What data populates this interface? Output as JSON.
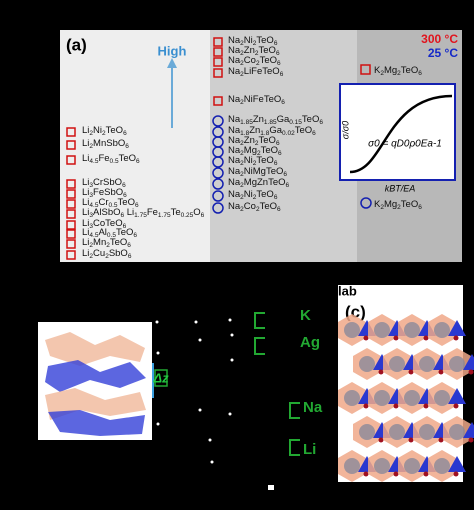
{
  "panel_a": {
    "label": "(a)",
    "arrow_label": "High",
    "temp_high": "300 °C",
    "temp_low": "25 °C",
    "li_compounds": [
      "Li2Ni2TeO6",
      "Li2MnSbO6",
      "Li4.5Fe0.5TeO6",
      "Li3CrSbO6",
      "Li3FeSbO6",
      "Li4.5Cr0.5TeO6",
      "Li3AlSbO6 Li1.75Fe1.75Te0.25O6",
      "Li3CoTeO6",
      "Li4.5Al0.5TeO6",
      "Li2Mn2TeO6",
      "Li2Cu2SbO6"
    ],
    "na_compounds": [
      "Na2Ni2TeO6",
      "Na2Zn2TeO6",
      "Na2Co2TeO6",
      "Na2LiFeTeO6",
      "Na2NiFeTeO6",
      "Na1.85Zn1.85Ga0.15TeO6",
      "Na1.8Zn1.8Ga0.02TeO6",
      "Na2Zn2TeO6",
      "Na2Mg2TeO6",
      "Na2Ni2TeO6",
      "Na2NiMgTeO6",
      "Na2MgZnTeO6",
      "Na2Ni2TeO6",
      "Na2Co2TeO6"
    ],
    "k_high": "K2Mg2TeO6",
    "k_low": "K2Mg2TeO6",
    "inset": {
      "y_label": "σ/σ0",
      "x_label": "kBT/EA",
      "equation": "σ0 = qD0ρ0Ea-1"
    }
  },
  "panel_b": {
    "labels": [
      "K",
      "Ag",
      "Na",
      "Li"
    ],
    "delta": "Δz",
    "slab": "n slab"
  },
  "panel_c": {
    "label": "(c)"
  }
}
